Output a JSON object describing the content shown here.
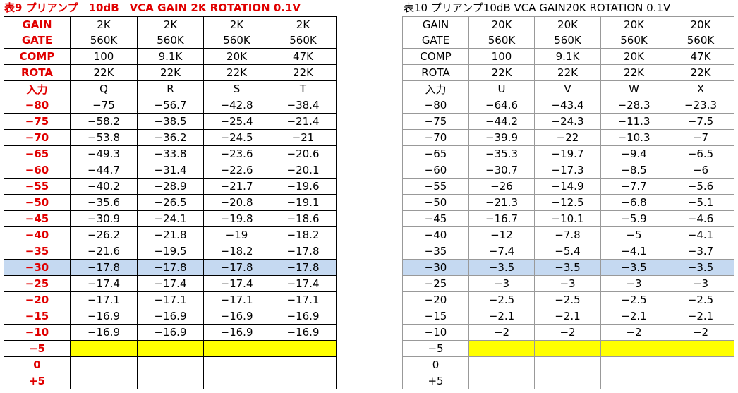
{
  "left": {
    "title": "表9 プリアンプ　10dB　VCA GAIN 2K ROTATION 0.1V",
    "rows": [
      [
        "GAIN",
        "2K",
        "2K",
        "2K",
        "2K"
      ],
      [
        "GATE",
        "560K",
        "560K",
        "560K",
        "560K"
      ],
      [
        "COMP",
        "100",
        "9.1K",
        "20K",
        "47K"
      ],
      [
        "ROTA",
        "22K",
        "22K",
        "22K",
        "22K"
      ],
      [
        "入力",
        "Q",
        "R",
        "S",
        "T"
      ],
      [
        "−80",
        "−75",
        "−56.7",
        "−42.8",
        "−38.4"
      ],
      [
        "−75",
        "−58.2",
        "−38.5",
        "−25.4",
        "−21.4"
      ],
      [
        "−70",
        "−53.8",
        "−36.2",
        "−24.5",
        "−21"
      ],
      [
        "−65",
        "−49.3",
        "−33.8",
        "−23.6",
        "−20.6"
      ],
      [
        "−60",
        "−44.7",
        "−31.4",
        "−22.6",
        "−20.1"
      ],
      [
        "−55",
        "−40.2",
        "−28.9",
        "−21.7",
        "−19.6"
      ],
      [
        "−50",
        "−35.6",
        "−26.5",
        "−20.8",
        "−19.1"
      ],
      [
        "−45",
        "−30.9",
        "−24.1",
        "−19.8",
        "−18.6"
      ],
      [
        "−40",
        "−26.2",
        "−21.8",
        "−19",
        "−18.2"
      ],
      [
        "−35",
        "−21.6",
        "−19.5",
        "−18.2",
        "−17.8"
      ],
      [
        "−30",
        "−17.8",
        "−17.8",
        "−17.8",
        "−17.8"
      ],
      [
        "−25",
        "−17.4",
        "−17.4",
        "−17.4",
        "−17.4"
      ],
      [
        "−20",
        "−17.1",
        "−17.1",
        "−17.1",
        "−17.1"
      ],
      [
        "−15",
        "−16.9",
        "−16.9",
        "−16.9",
        "−16.9"
      ],
      [
        "−10",
        "−16.9",
        "−16.9",
        "−16.9",
        "−16.9"
      ],
      [
        "−5"
      ],
      [
        "0"
      ],
      [
        "+5"
      ]
    ]
  },
  "right": {
    "title": "表10 プリアンプ10dB VCA GAIN20K ROTATION 0.1V",
    "rows": [
      [
        "GAIN",
        "20K",
        "20K",
        "20K",
        "20K"
      ],
      [
        "GATE",
        "560K",
        "560K",
        "560K",
        "560K"
      ],
      [
        "COMP",
        "100",
        "9.1K",
        "20K",
        "47K"
      ],
      [
        "ROTA",
        "22K",
        "22K",
        "22K",
        "22K"
      ],
      [
        "入力",
        "U",
        "V",
        "W",
        "X"
      ],
      [
        "−80",
        "−64.6",
        "−43.4",
        "−28.3",
        "−23.3"
      ],
      [
        "−75",
        "−44.2",
        "−24.3",
        "−11.3",
        "−7.5"
      ],
      [
        "−70",
        "−39.9",
        "−22",
        "−10.3",
        "−7"
      ],
      [
        "−65",
        "−35.3",
        "−19.7",
        "−9.4",
        "−6.5"
      ],
      [
        "−60",
        "−30.7",
        "−17.3",
        "−8.5",
        "−6"
      ],
      [
        "−55",
        "−26",
        "−14.9",
        "−7.7",
        "−5.6"
      ],
      [
        "−50",
        "−21.3",
        "−12.5",
        "−6.8",
        "−5.1"
      ],
      [
        "−45",
        "−16.7",
        "−10.1",
        "−5.9",
        "−4.6"
      ],
      [
        "−40",
        "−12",
        "−7.8",
        "−5",
        "−4.1"
      ],
      [
        "−35",
        "−7.4",
        "−5.4",
        "−4.1",
        "−3.7"
      ],
      [
        "−30",
        "−3.5",
        "−3.5",
        "−3.5",
        "−3.5"
      ],
      [
        "−25",
        "−3",
        "−3",
        "−3",
        "−3"
      ],
      [
        "−20",
        "−2.5",
        "−2.5",
        "−2.5",
        "−2.5"
      ],
      [
        "−15",
        "−2.1",
        "−2.1",
        "−2.1",
        "−2.1"
      ],
      [
        "−10",
        "−2",
        "−2",
        "−2",
        "−2"
      ],
      [
        "−5"
      ],
      [
        "0"
      ],
      [
        "+5"
      ]
    ]
  }
}
